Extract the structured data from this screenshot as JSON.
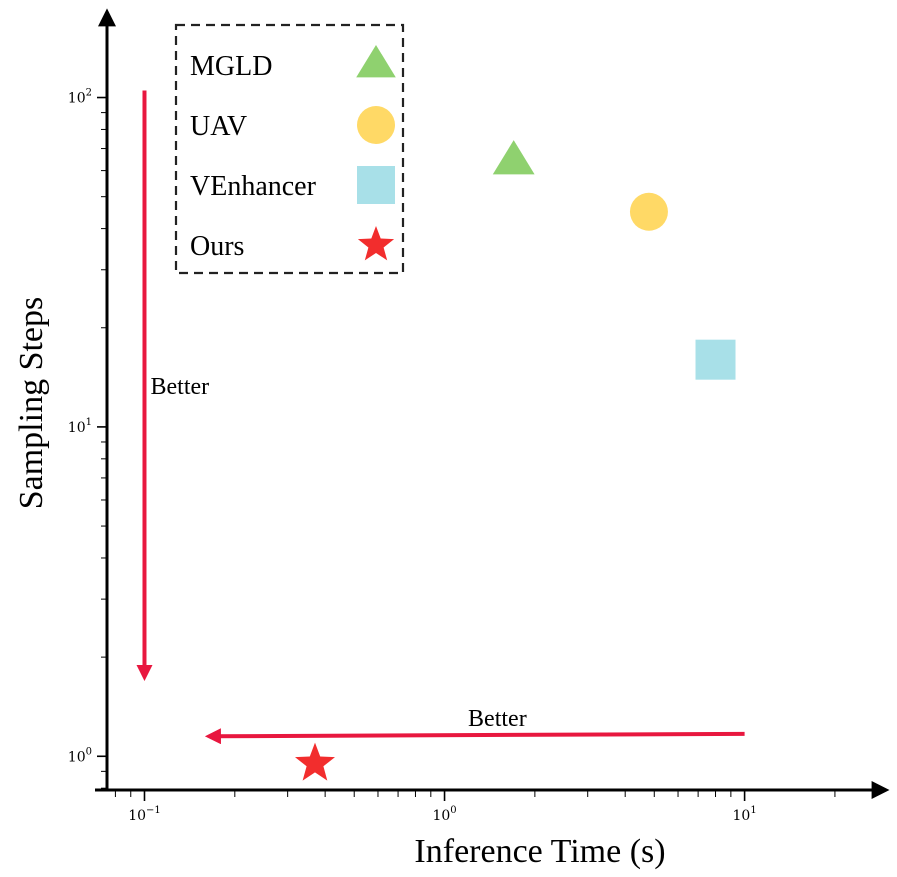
{
  "chart_data": {
    "type": "scatter",
    "xlabel": "Inference Time (s)",
    "ylabel": "Sampling Steps",
    "xscale": "log",
    "yscale": "log",
    "xlim": [
      0.075,
      25
    ],
    "ylim": [
      0.79,
      130
    ],
    "x_ticks": [
      {
        "value": 0.1,
        "base": "10",
        "exp": "−1"
      },
      {
        "value": 1,
        "base": "10",
        "exp": "0"
      },
      {
        "value": 10,
        "base": "10",
        "exp": "1"
      }
    ],
    "y_ticks": [
      {
        "value": 1,
        "base": "10",
        "exp": "0"
      },
      {
        "value": 10,
        "base": "10",
        "exp": "1"
      },
      {
        "value": 100,
        "base": "10",
        "exp": "2"
      }
    ],
    "legend": {
      "placement": "top-left",
      "entries": [
        {
          "label": "MGLD",
          "marker": "triangle",
          "color": "#8fd16f"
        },
        {
          "label": "UAV",
          "marker": "circle",
          "color": "#ffd966"
        },
        {
          "label": "VEnhancer",
          "marker": "square",
          "color": "#a8e0e8"
        },
        {
          "label": "Ours",
          "marker": "star",
          "color": "#f22d2d"
        }
      ]
    },
    "series": [
      {
        "name": "MGLD",
        "marker": "triangle",
        "color": "#8fd16f",
        "x": 1.7,
        "y": 65
      },
      {
        "name": "UAV",
        "marker": "circle",
        "color": "#ffd966",
        "x": 4.8,
        "y": 45
      },
      {
        "name": "VEnhancer",
        "marker": "square",
        "color": "#a8e0e8",
        "x": 8.0,
        "y": 16
      },
      {
        "name": "Ours",
        "marker": "star",
        "color": "#f22d2d",
        "x": 0.37,
        "y": 0.95
      }
    ],
    "annotations": [
      {
        "text": "Better",
        "direction": "down",
        "color": "#e8173f",
        "x_from": 0.1,
        "y_from": 105,
        "x_to": 0.1,
        "y_to": 1.75
      },
      {
        "text": "Better",
        "direction": "left",
        "color": "#e8173f",
        "x_from": 10,
        "y_from": 1.17,
        "x_to": 0.165,
        "y_to": 1.15
      }
    ]
  }
}
